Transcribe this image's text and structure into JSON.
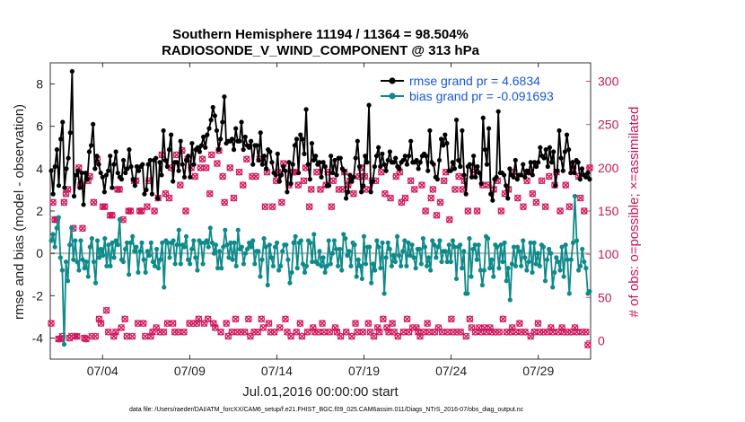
{
  "chart_data": {
    "type": "line",
    "title": "Southern Hemisphere 11194 / 11364 = 98.504%",
    "subtitle": "RADIOSONDE_V_WIND_COMPONENT @ 313 hPa",
    "xlabel": "Jul.01,2016 00:00:00 start",
    "ylabel": "rmse and bias (model - observation)",
    "ylabel_right": "# of obs: o=possible; ×=assimilated",
    "xlim": [
      1.0,
      32.0
    ],
    "ylim": [
      -5,
      9
    ],
    "ylim_right": [
      -21.4,
      321.4
    ],
    "x_ticks": [
      4,
      9,
      14,
      19,
      24,
      29
    ],
    "x_tick_labels": [
      "07/04",
      "07/09",
      "07/14",
      "07/19",
      "07/24",
      "07/29"
    ],
    "y_ticks": [
      -4,
      -2,
      0,
      2,
      4,
      6,
      8
    ],
    "y_tick_labels": [
      "-4",
      "-2",
      "0",
      "2",
      "4",
      "6",
      "8"
    ],
    "y_right_ticks": [
      0,
      50,
      100,
      150,
      200,
      250,
      300
    ],
    "y_right_tick_labels": [
      "0",
      "50",
      "100",
      "150",
      "200",
      "250",
      "300"
    ],
    "zero_line": 0,
    "series": [
      {
        "name": "rmse grand pr = 4.6834",
        "color": "#000000",
        "axis": "left",
        "values": [
          3.9,
          2.8,
          4.1,
          4.9,
          3.2,
          5.4,
          6.2,
          3.1,
          4.0,
          4.5,
          5.7,
          8.6,
          2.7,
          3.7,
          3.9,
          3.1,
          3.8,
          2.3,
          3.8,
          3.5,
          4.8,
          5.1,
          6.1,
          4.0,
          4.6,
          4.2,
          3.8,
          3.6,
          2.9,
          3.7,
          3.9,
          4.6,
          3.1,
          4.2,
          4.8,
          3.8,
          3.6,
          3.5,
          4.4,
          3.8,
          4.0,
          4.9,
          4.1,
          3.5,
          3.2,
          4.1,
          3.9,
          4.1,
          4.2,
          2.8,
          3.0,
          4.2,
          4.4,
          2.8,
          4.4,
          4.5,
          2.6,
          4.3,
          3.7,
          5.8,
          4.4,
          4.1,
          4.9,
          5.6,
          3.4,
          4.3,
          4.3,
          3.9,
          5.3,
          4.2,
          3.6,
          4.4,
          4.6,
          3.6,
          5.2,
          4.2,
          4.9,
          5.0,
          4.8,
          5.1,
          5.5,
          5.0,
          5.6,
          5.9,
          6.3,
          6.9,
          6.5,
          5.8,
          4.9,
          5.4,
          6.2,
          7.4,
          5.2,
          5.3,
          5.3,
          5.4,
          4.9,
          5.9,
          5.3,
          5.3,
          6.2,
          4.9,
          5.5,
          5.1,
          5.0,
          5.3,
          4.2,
          5.1,
          5.1,
          4.4,
          5.7,
          4.2,
          4.6,
          4.0,
          4.9,
          4.8,
          4.3,
          3.8,
          3.7,
          4.7,
          3.4,
          3.7,
          4.1,
          3.9,
          2.9,
          4.3,
          3.3,
          4.2,
          5.1,
          5.4,
          3.8,
          5.6,
          5.4,
          4.7,
          6.8,
          4.2,
          3.5,
          5.2,
          4.4,
          4.6,
          4.2,
          4.3,
          3.6,
          4.3,
          4.1,
          3.2,
          3.2,
          4.6,
          3.8,
          4.4,
          3.7,
          4.5,
          4.5,
          4.0,
          3.9,
          2.6,
          2.9,
          3.7,
          3.4,
          3.6,
          4.5,
          5.3,
          4.1,
          2.9,
          3.2,
          4.6,
          4.3,
          7.0,
          2.9,
          3.4,
          4.1,
          4.6,
          5.0,
          4.1,
          4.7,
          4.2,
          3.9,
          4.4,
          4.8,
          4.3,
          4.3,
          4.5,
          4.1,
          4.0,
          4.3,
          4.4,
          4.6,
          4.2,
          4.6,
          5.3,
          4.3,
          4.3,
          4.4,
          4.0,
          4.3,
          4.6,
          4.7,
          4.6,
          3.9,
          5.8,
          4.3,
          4.2,
          3.6,
          3.5,
          4.4,
          5.4,
          5.1,
          5.6,
          5.2,
          3.9,
          3.9,
          4.3,
          4.0,
          6.3,
          4.4,
          4.1,
          5.8,
          3.7,
          2.8,
          4.1,
          4.2,
          3.6,
          4.6,
          3.6,
          4.1,
          3.8,
          3.3,
          6.4,
          4.9,
          4.2,
          5.9,
          2.8,
          2.5,
          3.5,
          3.6,
          6.7,
          3.8,
          3.8,
          3.7,
          3.2,
          2.6,
          4.0,
          3.7,
          3.6,
          4.4,
          3.5,
          3.7,
          3.7,
          4.2,
          3.6,
          3.9,
          3.8,
          4.3,
          3.7,
          4.3,
          4.1,
          4.3,
          5.0,
          4.6,
          4.5,
          4.9,
          4.1,
          5.0,
          4.3,
          4.8,
          3.2,
          3.9,
          5.8,
          4.5,
          3.9,
          4.8,
          5.6,
          4.9,
          3.8,
          4.3,
          3.8,
          4.4,
          4.3,
          3.5,
          4.0,
          3.7,
          3.6,
          3.8,
          3.5
        ]
      },
      {
        "name": "bias grand pr = -0.091693",
        "color": "#0f8a8a",
        "axis": "left",
        "values": [
          0.6,
          0.9,
          0.3,
          1.2,
          1.7,
          -0.2,
          -0.8,
          -4.3,
          -0.4,
          -1.3,
          0.4,
          1.2,
          -0.3,
          0.6,
          -0.4,
          -0.8,
          0.6,
          -0.3,
          -0.7,
          -0.4,
          -1.1,
          0.3,
          0.7,
          -0.4,
          -1.4,
          0.6,
          -0.2,
          0.2,
          -0.1,
          0.7,
          -0.6,
          0.4,
          -0.6,
          0.5,
          -0.2,
          0.6,
          0.4,
          1.6,
          -0.3,
          -0.4,
          0.2,
          0.5,
          -1.0,
          0.5,
          0.8,
          0.1,
          0.3,
          -0.9,
          0.1,
          0.5,
          -0.3,
          -0.9,
          0.1,
          -0.1,
          0.5,
          -0.4,
          -0.6,
          0.2,
          -0.7,
          -0.3,
          0.5,
          -1.6,
          0.6,
          0.5,
          -0.2,
          0.5,
          0.6,
          -0.5,
          0.4,
          1.1,
          -0.5,
          0.4,
          0.3,
          0.8,
          -0.3,
          -0.5,
          0.2,
          0.6,
          -0.2,
          -0.8,
          0.6,
          0.5,
          -0.5,
          0.5,
          0.6,
          0.3,
          1.2,
          0.5,
          0.0,
          0.4,
          -0.7,
          0.1,
          -0.7,
          0.3,
          1.1,
          0.4,
          -0.2,
          0.5,
          -0.3,
          0.5,
          -0.6,
          1.1,
          0.2,
          0.3,
          -0.5,
          0.0,
          0.2,
          0.5,
          0.3,
          0.6,
          -0.5,
          0.1,
          0.1,
          -1.1,
          -0.3,
          0.7,
          0.3,
          -1.5,
          0.4,
          -0.2,
          -0.6,
          0.3,
          0.5,
          -0.8,
          -0.6,
          0.1,
          0.4,
          0.4,
          -0.3,
          -1.4,
          -0.9,
          0.5,
          0.8,
          -0.7,
          0.5,
          0.6,
          -0.5,
          -0.9,
          -0.6,
          0.6,
          0.5,
          -0.4,
          0.9,
          -0.4,
          -0.5,
          0.1,
          -0.6,
          -0.2,
          -0.9,
          -0.6,
          0.6,
          -0.5,
          0.0,
          0.6,
          0.2,
          -0.6,
          0.2,
          -0.8,
          0.9,
          0.7,
          -0.1,
          0.1,
          -0.6,
          0.5,
          0.4,
          -1.1,
          -0.3,
          -0.6,
          -1.2,
          0.8,
          -0.5,
          0.3,
          0.3,
          -1.4,
          -0.5,
          -0.8,
          0.6,
          0.3,
          -0.7,
          0.5,
          -1.9,
          -0.2,
          0.5,
          0.2,
          -0.6,
          -0.1,
          -0.4,
          0.8,
          -0.1,
          -0.6,
          0.1,
          0.6,
          -0.6,
          0.5,
          -0.1,
          0.4,
          -0.2,
          -0.7,
          0.2,
          0.2,
          -0.5,
          0.7,
          0.3,
          -0.6,
          -0.2,
          -0.8,
          0.6,
          0.4,
          -0.2,
          0.3,
          0.6,
          -0.4,
          0.1,
          0.1,
          -0.4,
          0.4,
          -0.4,
          0.6,
          0.3,
          -1.2,
          0.3,
          0.4,
          -0.7,
          0.1,
          -1.9,
          -1.9,
          0.7,
          -1.1,
          0.2,
          0.4,
          -0.3,
          0.4,
          -0.8,
          -1.5,
          -0.8,
          0.8,
          0.7,
          -0.7,
          -0.3,
          -1.1,
          0.4,
          0.3,
          -0.7,
          0.4,
          -0.4,
          0.5,
          -1.3,
          -0.7,
          -2.2,
          -0.5,
          0.3,
          -0.6,
          0.3,
          0.1,
          -0.6,
          0.6,
          -0.2,
          -0.8,
          -0.4,
          0.5,
          -0.9,
          0.5,
          -0.5,
          0.0,
          -0.6,
          0.4,
          0.3,
          -1.3,
          -0.3,
          0.2,
          0.0,
          -1.6,
          -0.9,
          -0.2,
          -0.4,
          -0.8,
          0.3,
          -1.1,
          0.4,
          -0.3,
          -1.9,
          -0.3,
          0.5,
          2.7,
          0.6,
          -0.8,
          -0.6,
          0.2,
          -0.4,
          -0.7,
          -1.9,
          -1.8
        ]
      }
    ],
    "obs_counts": {
      "axis": "right",
      "color": "#d0185e",
      "possible_marker": "o",
      "assimilated_marker": "×",
      "values": [
        20,
        160,
        140,
        140,
        2,
        2,
        5,
        160,
        170,
        175,
        3,
        5,
        130,
        5,
        5,
        200,
        180,
        130,
        3,
        2,
        185,
        190,
        5,
        160,
        5,
        210,
        25,
        20,
        155,
        155,
        35,
        10,
        145,
        145,
        5,
        10,
        175,
        175,
        15,
        140,
        25,
        5,
        150,
        150,
        5,
        185,
        185,
        20,
        150,
        150,
        20,
        5,
        155,
        185,
        5,
        10,
        150,
        15,
        165,
        10,
        215,
        10,
        170,
        20,
        165,
        200,
        20,
        10,
        215,
        10,
        180,
        220,
        10,
        150,
        210,
        20,
        200,
        20,
        190,
        20,
        25,
        200,
        210,
        20,
        200,
        25,
        170,
        215,
        20,
        15,
        205,
        220,
        10,
        190,
        160,
        20,
        5,
        200,
        10,
        165,
        25,
        10,
        195,
        10,
        180,
        10,
        210,
        25,
        5,
        190,
        10,
        190,
        10,
        210,
        25,
        15,
        155,
        195,
        20,
        10,
        155,
        10,
        185,
        195,
        15,
        160,
        205,
        25,
        10,
        180,
        5,
        195,
        195,
        10,
        180,
        20,
        5,
        185,
        200,
        10,
        155,
        175,
        15,
        10,
        195,
        10,
        175,
        20,
        10,
        180,
        195,
        10,
        155,
        185,
        15,
        10,
        175,
        5,
        175,
        195,
        10,
        180,
        185,
        5,
        170,
        20,
        10,
        190,
        200,
        10,
        190,
        175,
        20,
        10,
        185,
        5,
        185,
        15,
        10,
        195,
        25,
        170,
        15,
        10,
        165,
        20,
        10,
        190,
        5,
        195,
        160,
        10,
        165,
        25,
        10,
        185,
        15,
        175,
        15,
        10,
        5,
        180,
        10,
        150,
        20,
        10,
        165,
        175,
        10,
        145,
        15,
        160,
        10,
        185,
        195,
        10,
        140,
        25,
        10,
        175,
        10,
        190,
        10,
        175,
        185,
        5,
        150,
        25,
        15,
        195,
        10,
        150,
        15,
        10,
        180,
        15,
        10,
        180,
        15,
        10,
        175,
        10,
        185,
        10,
        150,
        25,
        170,
        10,
        175,
        10,
        15,
        195,
        10,
        165,
        20,
        10,
        155,
        10,
        185,
        195,
        5,
        170,
        10,
        160,
        20,
        10,
        185,
        10,
        155,
        10,
        190,
        15,
        10,
        180,
        195,
        10,
        150,
        15,
        10,
        180,
        10,
        155,
        10,
        200,
        15,
        10,
        190,
        165,
        10,
        150,
        10,
        -5,
        200
      ]
    }
  },
  "footer": {
    "data_file": "data file: /Users/raeder/DAI/ATM_forcXX/CAM6_setup/f.e21.FHIST_BGC.f09_025.CAM6assim.011/Diags_NTrS_2016-07/obs_diag_output.nc"
  }
}
